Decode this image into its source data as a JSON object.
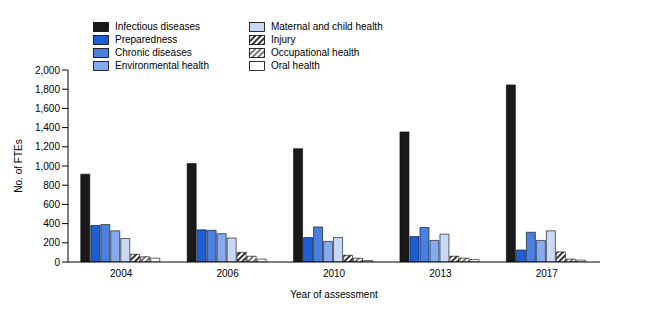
{
  "chart_data": {
    "type": "bar",
    "x_label": "Year of assessment",
    "y_label": "No. of FTEs",
    "categories": [
      "2004",
      "2006",
      "2010",
      "2013",
      "2017"
    ],
    "series": [
      {
        "name": "Infectious diseases",
        "color": "#1a1a1a",
        "values": [
          915,
          1025,
          1180,
          1355,
          1845
        ]
      },
      {
        "name": "Preparedness",
        "color": "#1f5fd6",
        "values": [
          380,
          335,
          255,
          265,
          125
        ]
      },
      {
        "name": "Chronic diseases",
        "color": "#4a80e2",
        "values": [
          390,
          330,
          365,
          360,
          310
        ]
      },
      {
        "name": "Environmental health",
        "color": "#86aaee",
        "values": [
          325,
          295,
          215,
          225,
          225
        ]
      },
      {
        "name": "Maternal and child health",
        "color": "#c8d8f6",
        "values": [
          245,
          250,
          255,
          290,
          325
        ]
      },
      {
        "name": "Injury",
        "color": "#333333",
        "line_style": "hatched",
        "values": [
          80,
          100,
          70,
          60,
          105
        ]
      },
      {
        "name": "Occupational health",
        "color": "#777777",
        "line_style": "hatched",
        "values": [
          55,
          60,
          40,
          40,
          30
        ]
      },
      {
        "name": "Oral health",
        "color": "#ffffff",
        "values": [
          40,
          30,
          15,
          25,
          20
        ]
      }
    ],
    "ylim": [
      0,
      2000
    ],
    "yticks": [
      0,
      200,
      400,
      600,
      800,
      {
        "value": 1000,
        "label": "1,000"
      },
      {
        "value": 1200,
        "label": "1,200"
      },
      {
        "value": 1400,
        "label": "1,400"
      },
      {
        "value": 1600,
        "label": "1,600"
      },
      {
        "value": 1800,
        "label": "1,800"
      },
      {
        "value": 2000,
        "label": "2,000"
      }
    ],
    "legend": "upper left",
    "grid": false
  }
}
